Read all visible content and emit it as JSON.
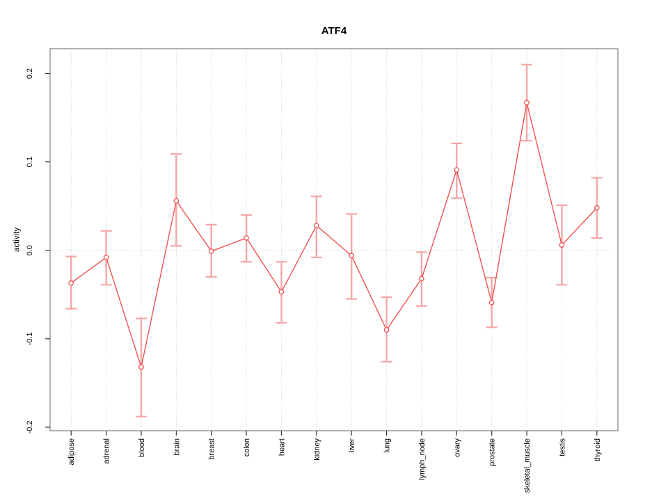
{
  "title": "ATF4",
  "chart_data": {
    "type": "line",
    "title": "ATF4",
    "xlabel": "",
    "ylabel": "activity",
    "legend": "none",
    "grid": "dotted vertical gridline at every category; dotted horizontal line at y=0",
    "marker": "open-circle",
    "error_bars": true,
    "categories": [
      "adipose",
      "adrenal",
      "blood",
      "brain",
      "breast",
      "colon",
      "heart",
      "kidney",
      "liver",
      "lung",
      "lymph_node",
      "ovary",
      "prostate",
      "skeletal_muscle",
      "testis",
      "thyroid"
    ],
    "series": [
      {
        "name": "activity",
        "values": [
          -0.037,
          -0.008,
          -0.132,
          0.056,
          -0.001,
          0.014,
          -0.047,
          0.028,
          -0.006,
          -0.09,
          -0.032,
          0.091,
          -0.059,
          0.167,
          0.006,
          0.048
        ],
        "upper": [
          -0.007,
          0.022,
          -0.077,
          0.109,
          0.029,
          0.04,
          -0.013,
          0.061,
          0.041,
          -0.053,
          -0.002,
          0.121,
          -0.031,
          0.21,
          0.051,
          0.082
        ],
        "lower": [
          -0.066,
          -0.039,
          -0.188,
          0.005,
          -0.03,
          -0.013,
          -0.082,
          -0.008,
          -0.055,
          -0.126,
          -0.063,
          0.059,
          -0.087,
          0.124,
          -0.039,
          0.014
        ]
      }
    ],
    "yticks": [
      "-0.2",
      "-0.1",
      "0.0",
      "0.1",
      "0.2"
    ],
    "ylim": [
      -0.204,
      0.228
    ],
    "colors": {
      "line": "#f05050",
      "error_bar": "#f7a6a6",
      "marker_fill": "#ffffff",
      "grid": "#d4d4d4",
      "box": "#888888",
      "tick": "#333333",
      "text": "#000000",
      "background": "#ffffff"
    }
  }
}
